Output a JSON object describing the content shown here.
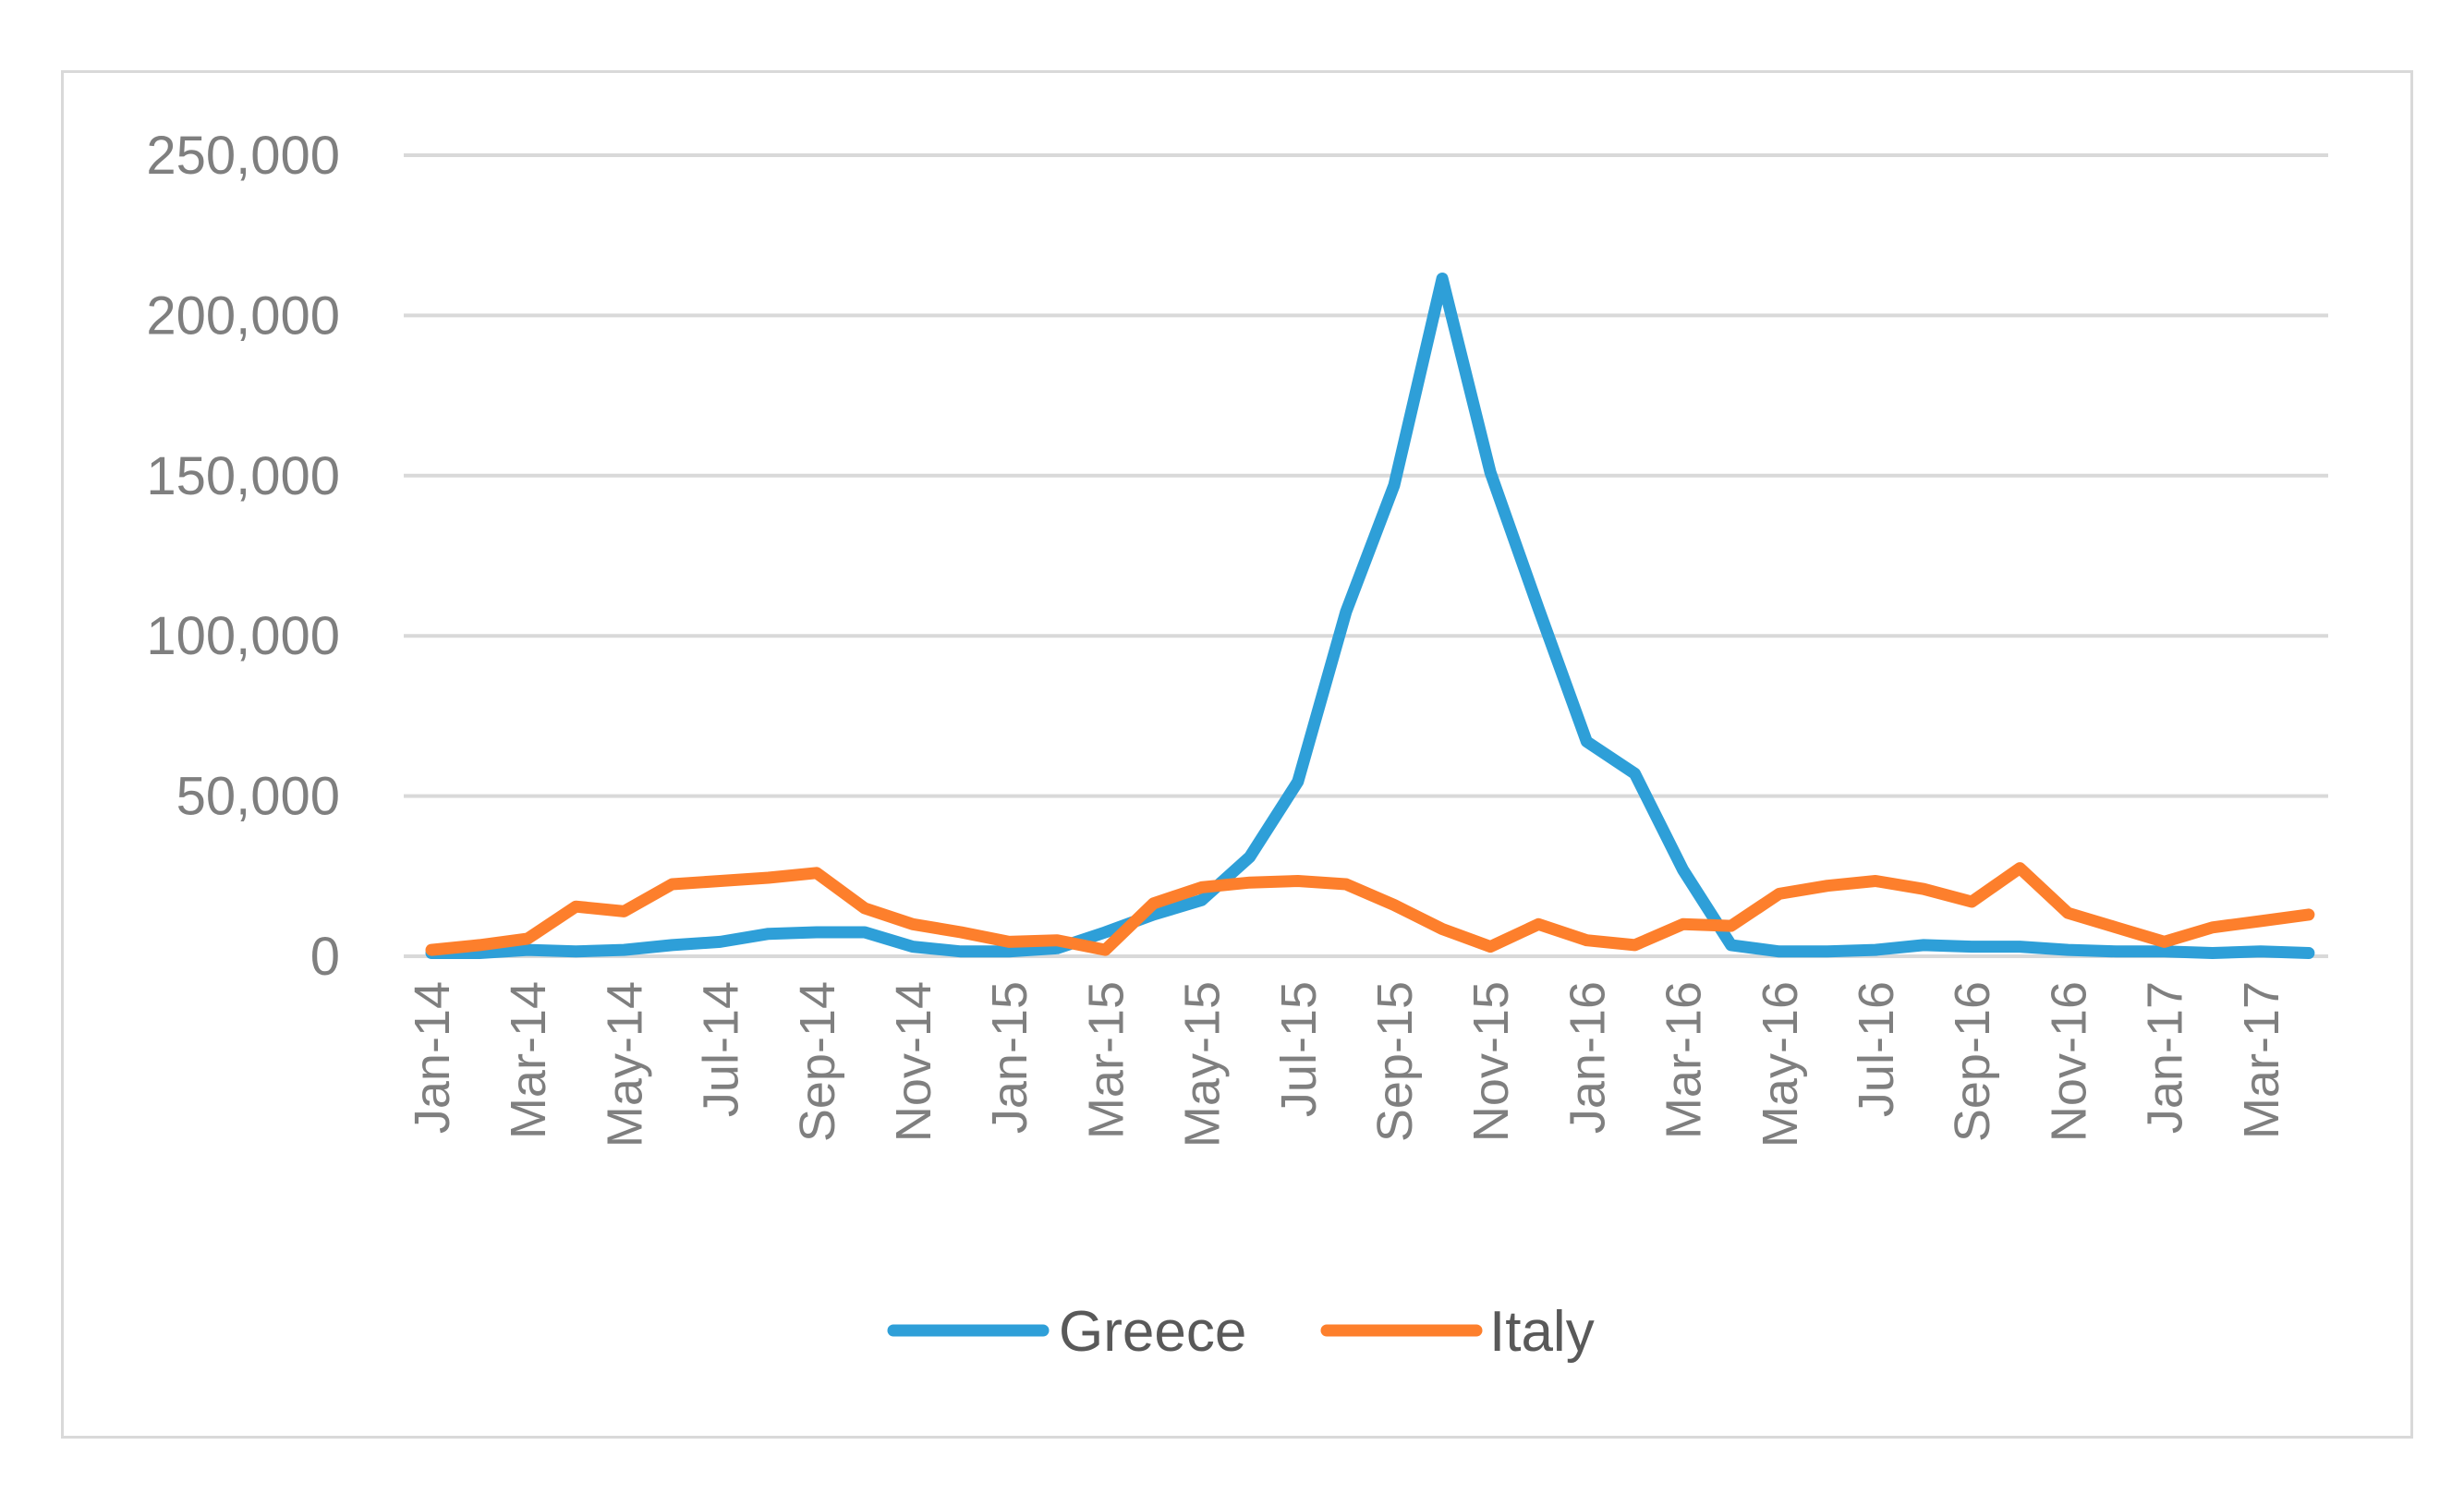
{
  "chart_data": {
    "type": "line",
    "title": "",
    "xlabel": "",
    "ylabel": "",
    "ylim": [
      0,
      250000
    ],
    "yticks": [
      "0",
      "50,000",
      "100,000",
      "150,000",
      "200,000",
      "250,000"
    ],
    "ytick_values": [
      0,
      50000,
      100000,
      150000,
      200000,
      250000
    ],
    "x": [
      "Jan-14",
      "Feb-14",
      "Mar-14",
      "Apr-14",
      "May-14",
      "Jun-14",
      "Jul-14",
      "Aug-14",
      "Sep-14",
      "Oct-14",
      "Nov-14",
      "Dec-14",
      "Jan-15",
      "Feb-15",
      "Mar-15",
      "Apr-15",
      "May-15",
      "Jun-15",
      "Jul-15",
      "Aug-15",
      "Sep-15",
      "Oct-15",
      "Nov-15",
      "Dec-15",
      "Jan-16",
      "Feb-16",
      "Mar-16",
      "Apr-16",
      "May-16",
      "Jun-16",
      "Jul-16",
      "Aug-16",
      "Sep-16",
      "Oct-16",
      "Nov-16",
      "Dec-16",
      "Jan-17",
      "Feb-17",
      "Mar-17",
      "Apr-17"
    ],
    "xtick_labels": [
      "Jan-14",
      "Mar-14",
      "May-14",
      "Jul-14",
      "Sep-14",
      "Nov-14",
      "Jan-15",
      "Mar-15",
      "May-15",
      "Jul-15",
      "Sep-15",
      "Nov-15",
      "Jan-16",
      "Mar-16",
      "May-16",
      "Jul-16",
      "Sep-16",
      "Nov-16",
      "Jan-17",
      "Mar-17"
    ],
    "grid": true,
    "legend": "bottom",
    "series": [
      {
        "name": "Greece",
        "color": "#2e9fd8",
        "values": [
          1000,
          1000,
          2000,
          1500,
          2000,
          3500,
          4500,
          7000,
          7500,
          7500,
          3000,
          1500,
          1500,
          2500,
          7500,
          13000,
          17500,
          31000,
          54500,
          107500,
          147000,
          211500,
          151000,
          108500,
          67000,
          57000,
          27000,
          3500,
          1500,
          1500,
          2000,
          3500,
          3000,
          3000,
          2000,
          1500,
          1500,
          1000,
          1500,
          1000
        ]
      },
      {
        "name": "Italy",
        "color": "#fd7f2c",
        "values": [
          2000,
          3500,
          5500,
          15500,
          14000,
          22500,
          23500,
          24500,
          26000,
          15000,
          10000,
          7500,
          4500,
          5000,
          2000,
          16500,
          21500,
          23000,
          23500,
          22500,
          16000,
          8500,
          3000,
          10000,
          5000,
          3500,
          10000,
          9500,
          19500,
          22000,
          23500,
          21000,
          17000,
          27500,
          13500,
          9000,
          4500,
          9000,
          11000,
          13000
        ]
      }
    ]
  }
}
